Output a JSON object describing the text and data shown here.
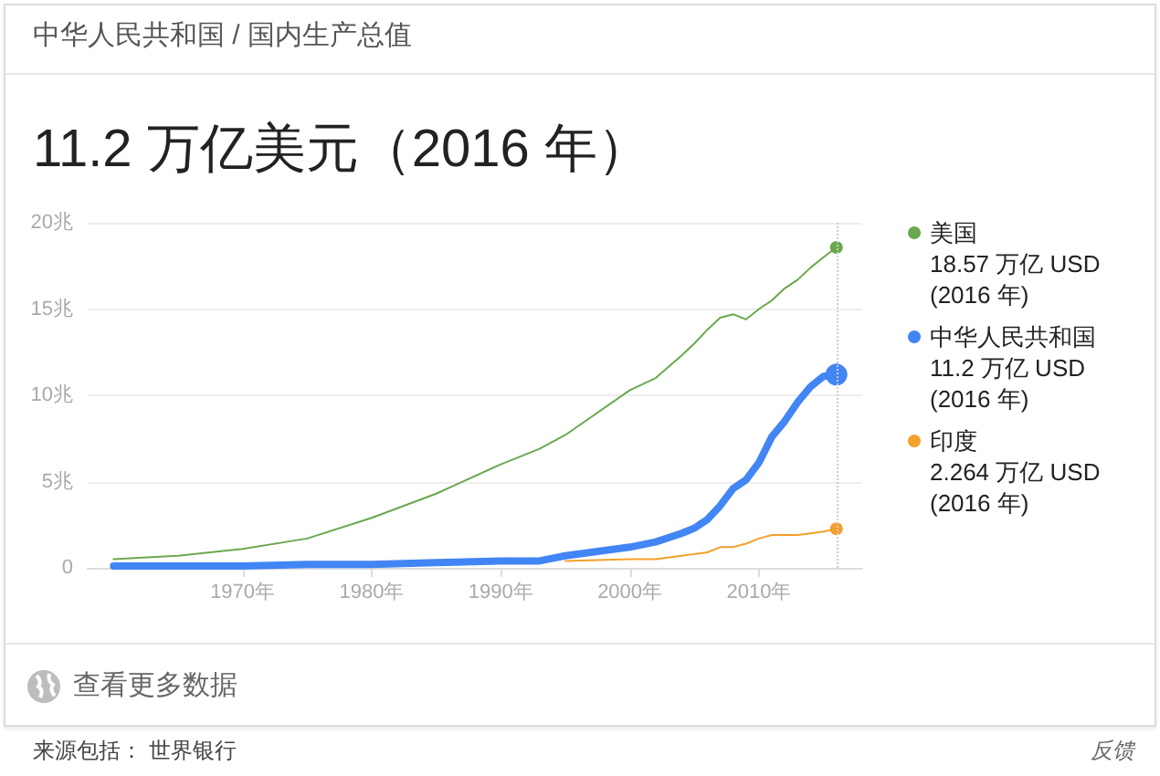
{
  "chart_data": {
    "type": "line",
    "title": "11.2 万亿美元（2016 年）",
    "subtitle": "中华人民共和国 / 国内生产总值",
    "x": [
      1960,
      1965,
      1970,
      1975,
      1980,
      1985,
      1990,
      1993,
      1995,
      2000,
      2002,
      2004,
      2005,
      2006,
      2007,
      2008,
      2009,
      2010,
      2011,
      2012,
      2013,
      2014,
      2015,
      2016
    ],
    "series": [
      {
        "name": "美国",
        "color": "#6aa84f",
        "values": [
          0.5,
          0.7,
          1.1,
          1.7,
          2.9,
          4.3,
          6,
          6.9,
          7.7,
          10.3,
          11,
          12.3,
          13,
          13.8,
          14.5,
          14.7,
          14.4,
          15,
          15.5,
          16.2,
          16.7,
          17.4,
          18,
          18.57
        ]
      },
      {
        "name": "中华人民共和国",
        "color": "#4285f4",
        "values": [
          0.1,
          0.1,
          0.1,
          0.2,
          0.2,
          0.3,
          0.4,
          0.4,
          0.7,
          1.2,
          1.5,
          2,
          2.3,
          2.8,
          3.6,
          4.6,
          5.1,
          6.1,
          7.6,
          8.5,
          9.6,
          10.5,
          11.1,
          11.2
        ]
      },
      {
        "name": "印度",
        "color": "#f4a02c",
        "values": [
          null,
          null,
          null,
          null,
          null,
          null,
          null,
          null,
          0.4,
          0.5,
          0.5,
          0.7,
          0.8,
          0.9,
          1.2,
          1.2,
          1.4,
          1.7,
          1.9,
          1.9,
          1.9,
          2,
          2.1,
          2.264
        ]
      }
    ],
    "xlim": [
      1958,
      2018
    ],
    "xticks": [
      {
        "value": 1970,
        "label": "1970年"
      },
      {
        "value": 1980,
        "label": "1980年"
      },
      {
        "value": 1990,
        "label": "1990年"
      },
      {
        "value": 2000,
        "label": "2000年"
      },
      {
        "value": 2010,
        "label": "2010年"
      }
    ],
    "ylim": [
      0,
      20
    ],
    "yticks": [
      {
        "value": 0,
        "label": "0"
      },
      {
        "value": 5,
        "label": "5兆"
      },
      {
        "value": 10,
        "label": "10兆"
      },
      {
        "value": 15,
        "label": "15兆"
      },
      {
        "value": 20,
        "label": "20兆"
      }
    ],
    "grid": "y",
    "legend": "right",
    "ref_lines": [
      {
        "axis": "x",
        "value": 2016,
        "label": null,
        "color": "#cccccc",
        "line_style": "dotted"
      }
    ],
    "annotations": [
      "18.57 万亿 USD",
      "(2016 年)",
      "11.2 万亿 USD",
      "(2016 年)",
      "2.264 万亿 USD",
      "(2016 年)",
      "查看更多数据",
      "来源包括： 世界银行",
      "反馈"
    ]
  }
}
